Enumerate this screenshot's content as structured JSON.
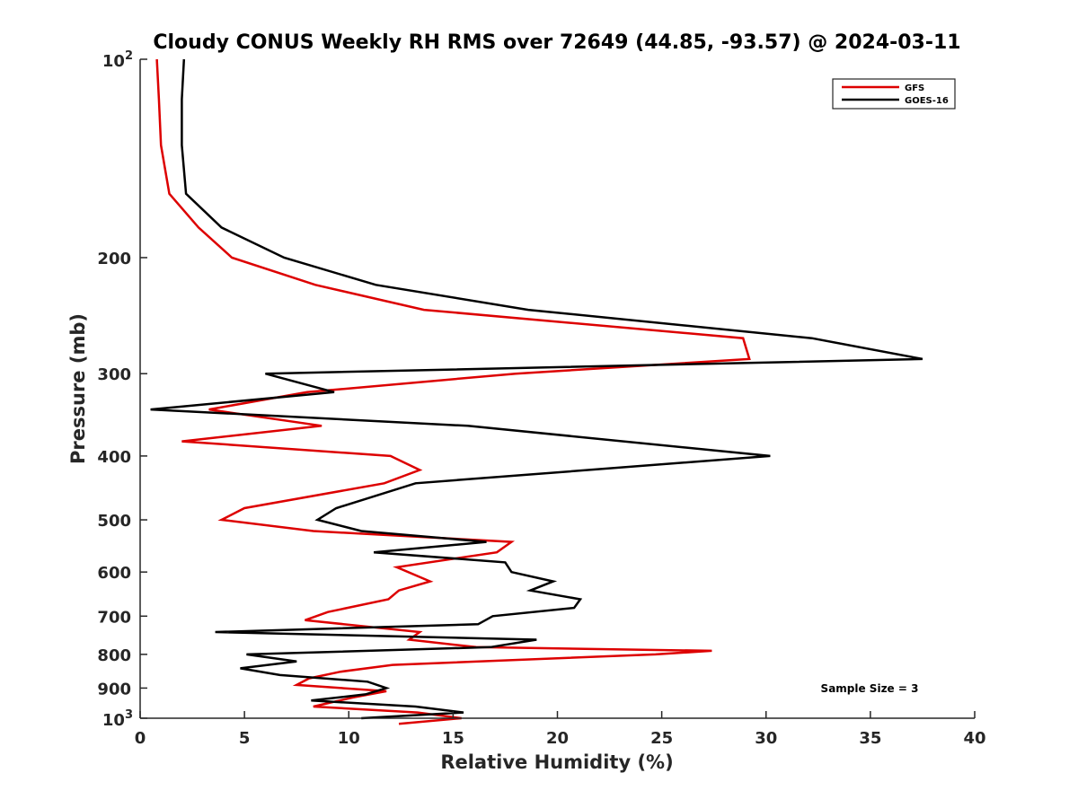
{
  "chart_data": {
    "type": "line",
    "title": "Cloudy CONUS Weekly RH RMS over 72649 (44.85, -93.57) @ 2024-03-11",
    "xlabel": "Relative Humidity (%)",
    "ylabel": "Pressure (mb)",
    "xlim": [
      0,
      40
    ],
    "ylim": [
      100,
      1000
    ],
    "y_scale": "log",
    "y_reversed": true,
    "grid": false,
    "legend_position": "top-right",
    "x_ticks": [
      "0",
      "5",
      "10",
      "15",
      "20",
      "25",
      "30",
      "35",
      "40"
    ],
    "y_ticks": [
      {
        "value": 200,
        "label": "200"
      },
      {
        "value": 300,
        "label": "300"
      },
      {
        "value": 400,
        "label": "400"
      },
      {
        "value": 500,
        "label": "500"
      },
      {
        "value": 600,
        "label": "600"
      },
      {
        "value": 700,
        "label": "700"
      },
      {
        "value": 800,
        "label": "800"
      },
      {
        "value": 900,
        "label": "900"
      }
    ],
    "y_power_ticks": [
      {
        "value": 100,
        "base": "10",
        "exp": "2"
      },
      {
        "value": 1000,
        "base": "10",
        "exp": "3"
      }
    ],
    "annotation": "Sample Size = 3",
    "series": [
      {
        "name": "GFS",
        "color": "#dd0000",
        "x": [
          0.8,
          0.9,
          1.0,
          1.4,
          2.8,
          4.4,
          8.4,
          13.6,
          28.9,
          29.2,
          18.0,
          8.0,
          3.3,
          8.7,
          2.0,
          12.0,
          13.4,
          11.7,
          5.0,
          3.9,
          8.3,
          17.8,
          17.1,
          12.3,
          13.9,
          12.4,
          11.9,
          9.0,
          7.9,
          13.4,
          12.9,
          16.1,
          27.4,
          24.7,
          12.1,
          9.6,
          8.1,
          7.5,
          11.8,
          10.2,
          8.3,
          13.3,
          15.4,
          12.4
        ],
        "y": [
          100,
          115,
          135,
          160,
          180,
          200,
          220,
          240,
          265,
          285,
          300,
          320,
          340,
          360,
          380,
          400,
          420,
          440,
          480,
          500,
          520,
          540,
          560,
          590,
          620,
          640,
          660,
          690,
          710,
          740,
          760,
          780,
          790,
          800,
          830,
          850,
          870,
          890,
          910,
          930,
          960,
          980,
          1000,
          1020
        ]
      },
      {
        "name": "GOES-16",
        "color": "#000000",
        "x": [
          2.1,
          2.0,
          2.0,
          2.2,
          3.9,
          6.9,
          11.3,
          18.6,
          32.2,
          37.5,
          6.0,
          9.3,
          0.5,
          15.7,
          30.2,
          13.2,
          9.4,
          8.5,
          10.6,
          16.6,
          11.2,
          17.5,
          17.8,
          19.8,
          18.7,
          21.1,
          20.8,
          16.9,
          16.2,
          3.6,
          19.0,
          16.8,
          5.1,
          7.5,
          4.8,
          6.7,
          10.9,
          11.8,
          10.8,
          8.2,
          13.2,
          15.5,
          10.6
        ],
        "y": [
          100,
          115,
          135,
          160,
          180,
          200,
          220,
          240,
          265,
          285,
          300,
          320,
          340,
          360,
          400,
          440,
          480,
          500,
          520,
          540,
          560,
          580,
          600,
          620,
          640,
          660,
          680,
          700,
          720,
          740,
          760,
          780,
          800,
          820,
          840,
          860,
          880,
          900,
          920,
          940,
          960,
          980,
          1000
        ]
      }
    ]
  }
}
